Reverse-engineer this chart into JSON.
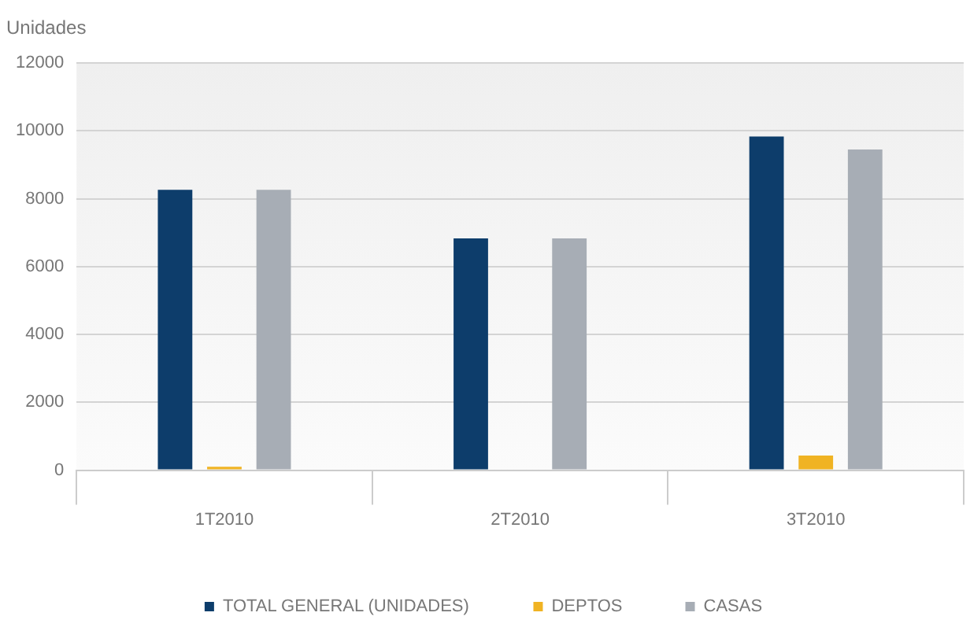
{
  "chart_data": {
    "type": "bar",
    "ylabel": "Unidades",
    "categories": [
      "1T2010",
      "2T2010",
      "3T2010"
    ],
    "series": [
      {
        "name": "TOTAL GENERAL (UNIDADES)",
        "color": "#0d3d6b",
        "values": [
          8260,
          6830,
          9830
        ]
      },
      {
        "name": "DEPTOS",
        "color": "#f0b323",
        "values": [
          100,
          0,
          430
        ]
      },
      {
        "name": "CASAS",
        "color": "#a7adb5",
        "values": [
          8260,
          6830,
          9450
        ]
      }
    ],
    "ylim": [
      0,
      12000
    ],
    "yticks": [
      0,
      2000,
      4000,
      6000,
      8000,
      10000,
      12000
    ],
    "grid": "y",
    "legend": "bottom"
  }
}
